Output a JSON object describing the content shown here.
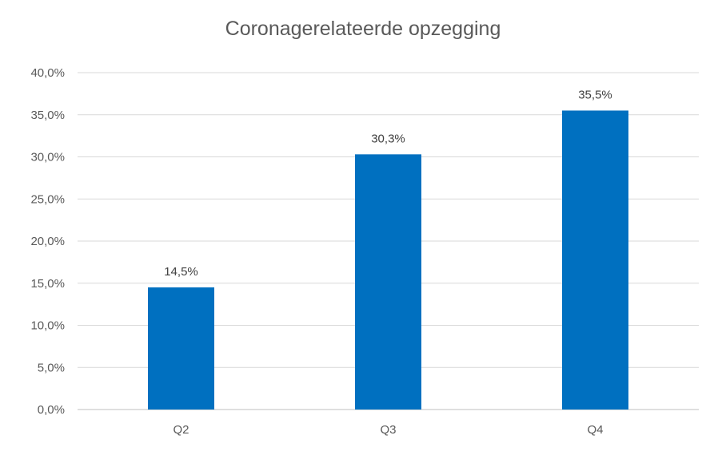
{
  "chart_data": {
    "type": "bar",
    "title": "Coronagerelateerde opzegging",
    "xlabel": "",
    "ylabel": "",
    "categories": [
      "Q2",
      "Q3",
      "Q4"
    ],
    "values": [
      14.5,
      30.3,
      35.5
    ],
    "data_labels": [
      "14,5%",
      "30,3%",
      "35,5%"
    ],
    "ylim": [
      0,
      40
    ],
    "y_ticks": [
      0,
      5,
      10,
      15,
      20,
      25,
      30,
      35,
      40
    ],
    "y_tick_labels": [
      "0,0%",
      "5,0%",
      "10,0%",
      "15,0%",
      "20,0%",
      "25,0%",
      "30,0%",
      "35,0%",
      "40,0%"
    ],
    "grid": true,
    "legend": "none",
    "colors": {
      "bar": "#0070c0",
      "gridline": "#d9d9d9",
      "axis": "#bfbfbf",
      "text": "#595959"
    }
  }
}
